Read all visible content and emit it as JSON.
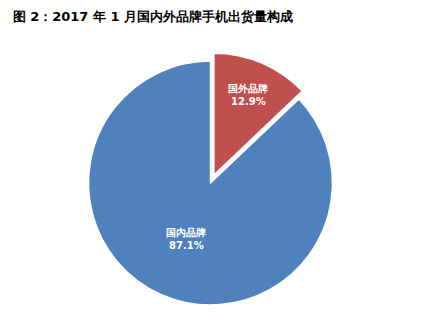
{
  "chart_data": {
    "type": "pie",
    "title": "图 2：2017 年 1 月国内外品牌手机出货量构成",
    "categories": [
      "国外品牌",
      "国内品牌"
    ],
    "values": [
      12.9,
      87.1
    ],
    "value_labels": [
      "12.9%",
      "87.1%"
    ],
    "colors": [
      "#C0504D",
      "#4F81BD"
    ],
    "data_labels": true
  }
}
